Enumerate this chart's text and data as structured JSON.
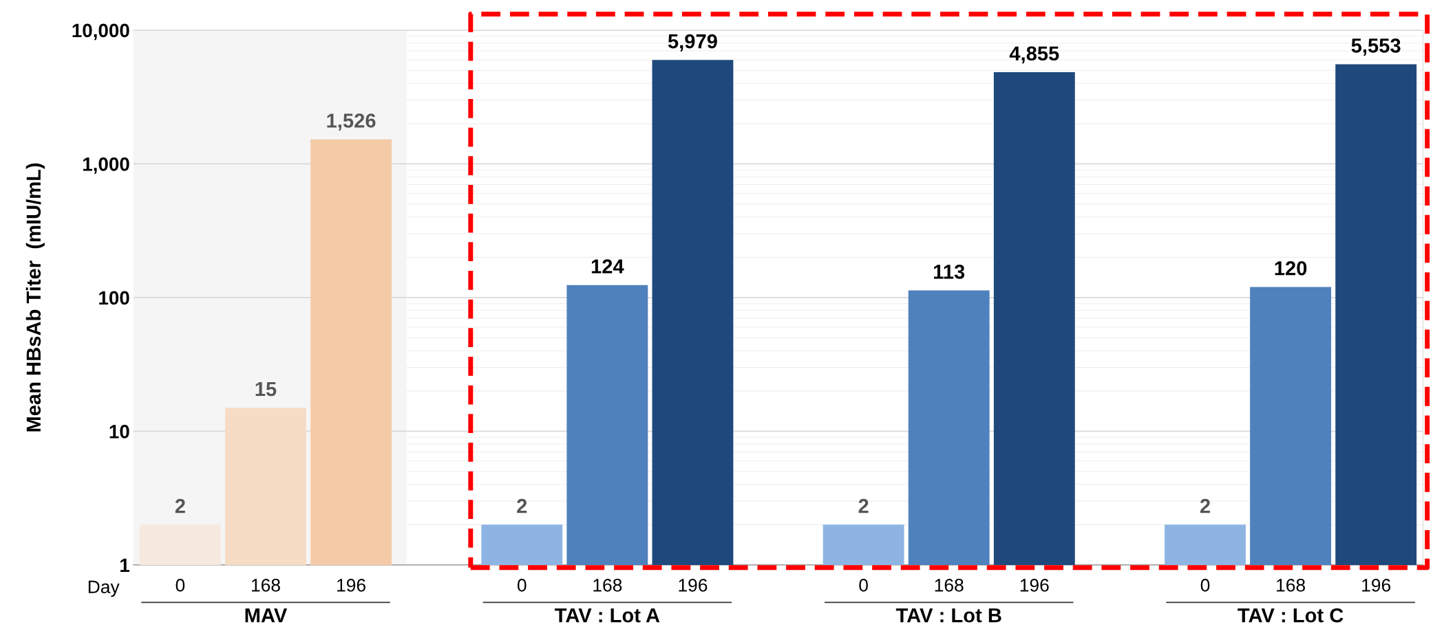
{
  "chart_data": {
    "type": "bar",
    "ylabel": "Mean HBsAb Titer  (mIU/mL)",
    "categories": [
      "0",
      "168",
      "196",
      null,
      "0",
      "168",
      "196",
      null,
      "0",
      "168",
      "196",
      null,
      "0",
      "168",
      "196"
    ],
    "values": [
      2,
      15,
      1526,
      null,
      2,
      124,
      5979,
      null,
      2,
      113,
      4855,
      null,
      2,
      120,
      5553
    ],
    "colors": [
      "#f8e9df",
      "#f7dcc5",
      "#f5cba7",
      null,
      "#8eb4e3",
      "#4f81bd",
      "#1f497d",
      null,
      "#8eb4e3",
      "#4f81bd",
      "#1f497d",
      null,
      "#8eb4e3",
      "#4f81bd",
      "#1f497d"
    ],
    "value_labels": [
      "2",
      "15",
      "1,526",
      null,
      "2",
      "124",
      "5,979",
      null,
      "2",
      "113",
      "4,855",
      null,
      "2",
      "120",
      "5,553"
    ],
    "log": true,
    "ylim": [
      1,
      10000
    ],
    "yticks": [
      1,
      10,
      100,
      {
        "value": 1000,
        "label": "1,000"
      },
      {
        "value": 10000,
        "label": "10,000"
      }
    ],
    "grid": "y",
    "annotations": [
      "Day",
      "MAV",
      "TAV : Lot A",
      "TAV : Lot B",
      "TAV : Lot C"
    ]
  }
}
